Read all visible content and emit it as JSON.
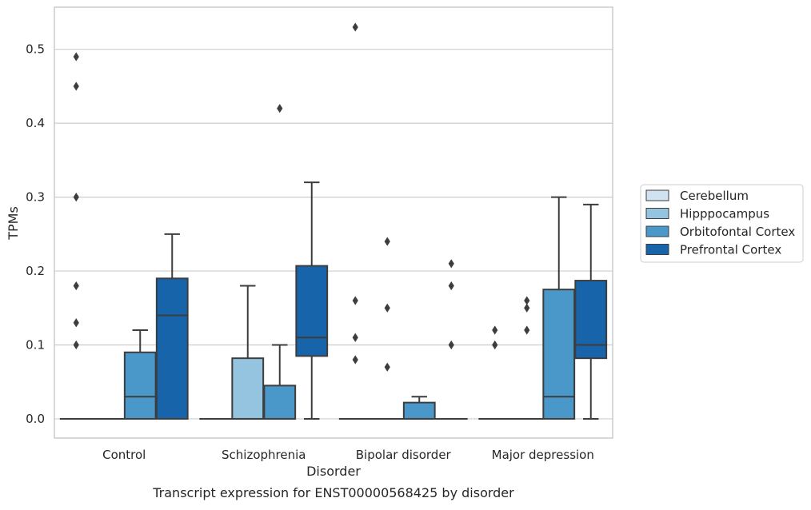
{
  "chart_data": {
    "type": "box",
    "caption": "Transcript expression for ENST00000568425 by disorder",
    "xlabel": "Disorder",
    "ylabel": "TPMs",
    "ylim": [
      -0.026,
      0.557
    ],
    "yticks": [
      "0.0",
      "0.1",
      "0.2",
      "0.3",
      "0.4",
      "0.5"
    ],
    "categories": [
      "Control",
      "Schizophrenia",
      "Bipolar disorder",
      "Major depression"
    ],
    "grid": true,
    "legend_position": "right",
    "series": [
      {
        "name": "Cerebellum",
        "color": "#d0e1f2",
        "boxes": [
          {
            "q1": 0,
            "median": 0,
            "q3": 0,
            "whisker_low": 0,
            "whisker_high": 0,
            "outliers": [
              0.1,
              0.13,
              0.18,
              0.3,
              0.45,
              0.49
            ]
          },
          {
            "q1": 0,
            "median": 0,
            "q3": 0,
            "whisker_low": 0,
            "whisker_high": 0,
            "outliers": []
          },
          {
            "q1": 0,
            "median": 0,
            "q3": 0,
            "whisker_low": 0,
            "whisker_high": 0,
            "outliers": [
              0.08,
              0.11,
              0.16,
              0.53
            ]
          },
          {
            "q1": 0,
            "median": 0,
            "q3": 0,
            "whisker_low": 0,
            "whisker_high": 0,
            "outliers": [
              0.1,
              0.12
            ]
          }
        ]
      },
      {
        "name": "Hipppocampus",
        "color": "#94c4df",
        "boxes": [
          {
            "q1": 0,
            "median": 0,
            "q3": 0,
            "whisker_low": 0,
            "whisker_high": 0,
            "outliers": []
          },
          {
            "q1": 0,
            "median": 0,
            "q3": 0.082,
            "whisker_low": 0,
            "whisker_high": 0.18,
            "outliers": []
          },
          {
            "q1": 0,
            "median": 0,
            "q3": 0,
            "whisker_low": 0,
            "whisker_high": 0,
            "outliers": [
              0.07,
              0.15,
              0.24
            ]
          },
          {
            "q1": 0,
            "median": 0,
            "q3": 0,
            "whisker_low": 0,
            "whisker_high": 0,
            "outliers": [
              0.12,
              0.15,
              0.16
            ]
          }
        ]
      },
      {
        "name": "Orbitofontal Cortex",
        "color": "#4a98c9",
        "boxes": [
          {
            "q1": 0,
            "median": 0.03,
            "q3": 0.09,
            "whisker_low": 0,
            "whisker_high": 0.12,
            "outliers": []
          },
          {
            "q1": 0,
            "median": 0,
            "q3": 0.045,
            "whisker_low": 0,
            "whisker_high": 0.1,
            "outliers": [
              0.42
            ]
          },
          {
            "q1": 0,
            "median": 0,
            "q3": 0.022,
            "whisker_low": 0,
            "whisker_high": 0.03,
            "outliers": []
          },
          {
            "q1": 0,
            "median": 0.03,
            "q3": 0.175,
            "whisker_low": 0,
            "whisker_high": 0.3,
            "outliers": []
          }
        ]
      },
      {
        "name": "Prefrontal Cortex",
        "color": "#1764ab",
        "boxes": [
          {
            "q1": 0,
            "median": 0.14,
            "q3": 0.19,
            "whisker_low": 0,
            "whisker_high": 0.25,
            "outliers": []
          },
          {
            "q1": 0.085,
            "median": 0.11,
            "q3": 0.207,
            "whisker_low": 0,
            "whisker_high": 0.32,
            "outliers": []
          },
          {
            "q1": 0,
            "median": 0,
            "q3": 0,
            "whisker_low": 0,
            "whisker_high": 0,
            "outliers": [
              0.1,
              0.18,
              0.21
            ]
          },
          {
            "q1": 0.082,
            "median": 0.1,
            "q3": 0.187,
            "whisker_low": 0,
            "whisker_high": 0.29,
            "outliers": []
          }
        ]
      }
    ]
  }
}
